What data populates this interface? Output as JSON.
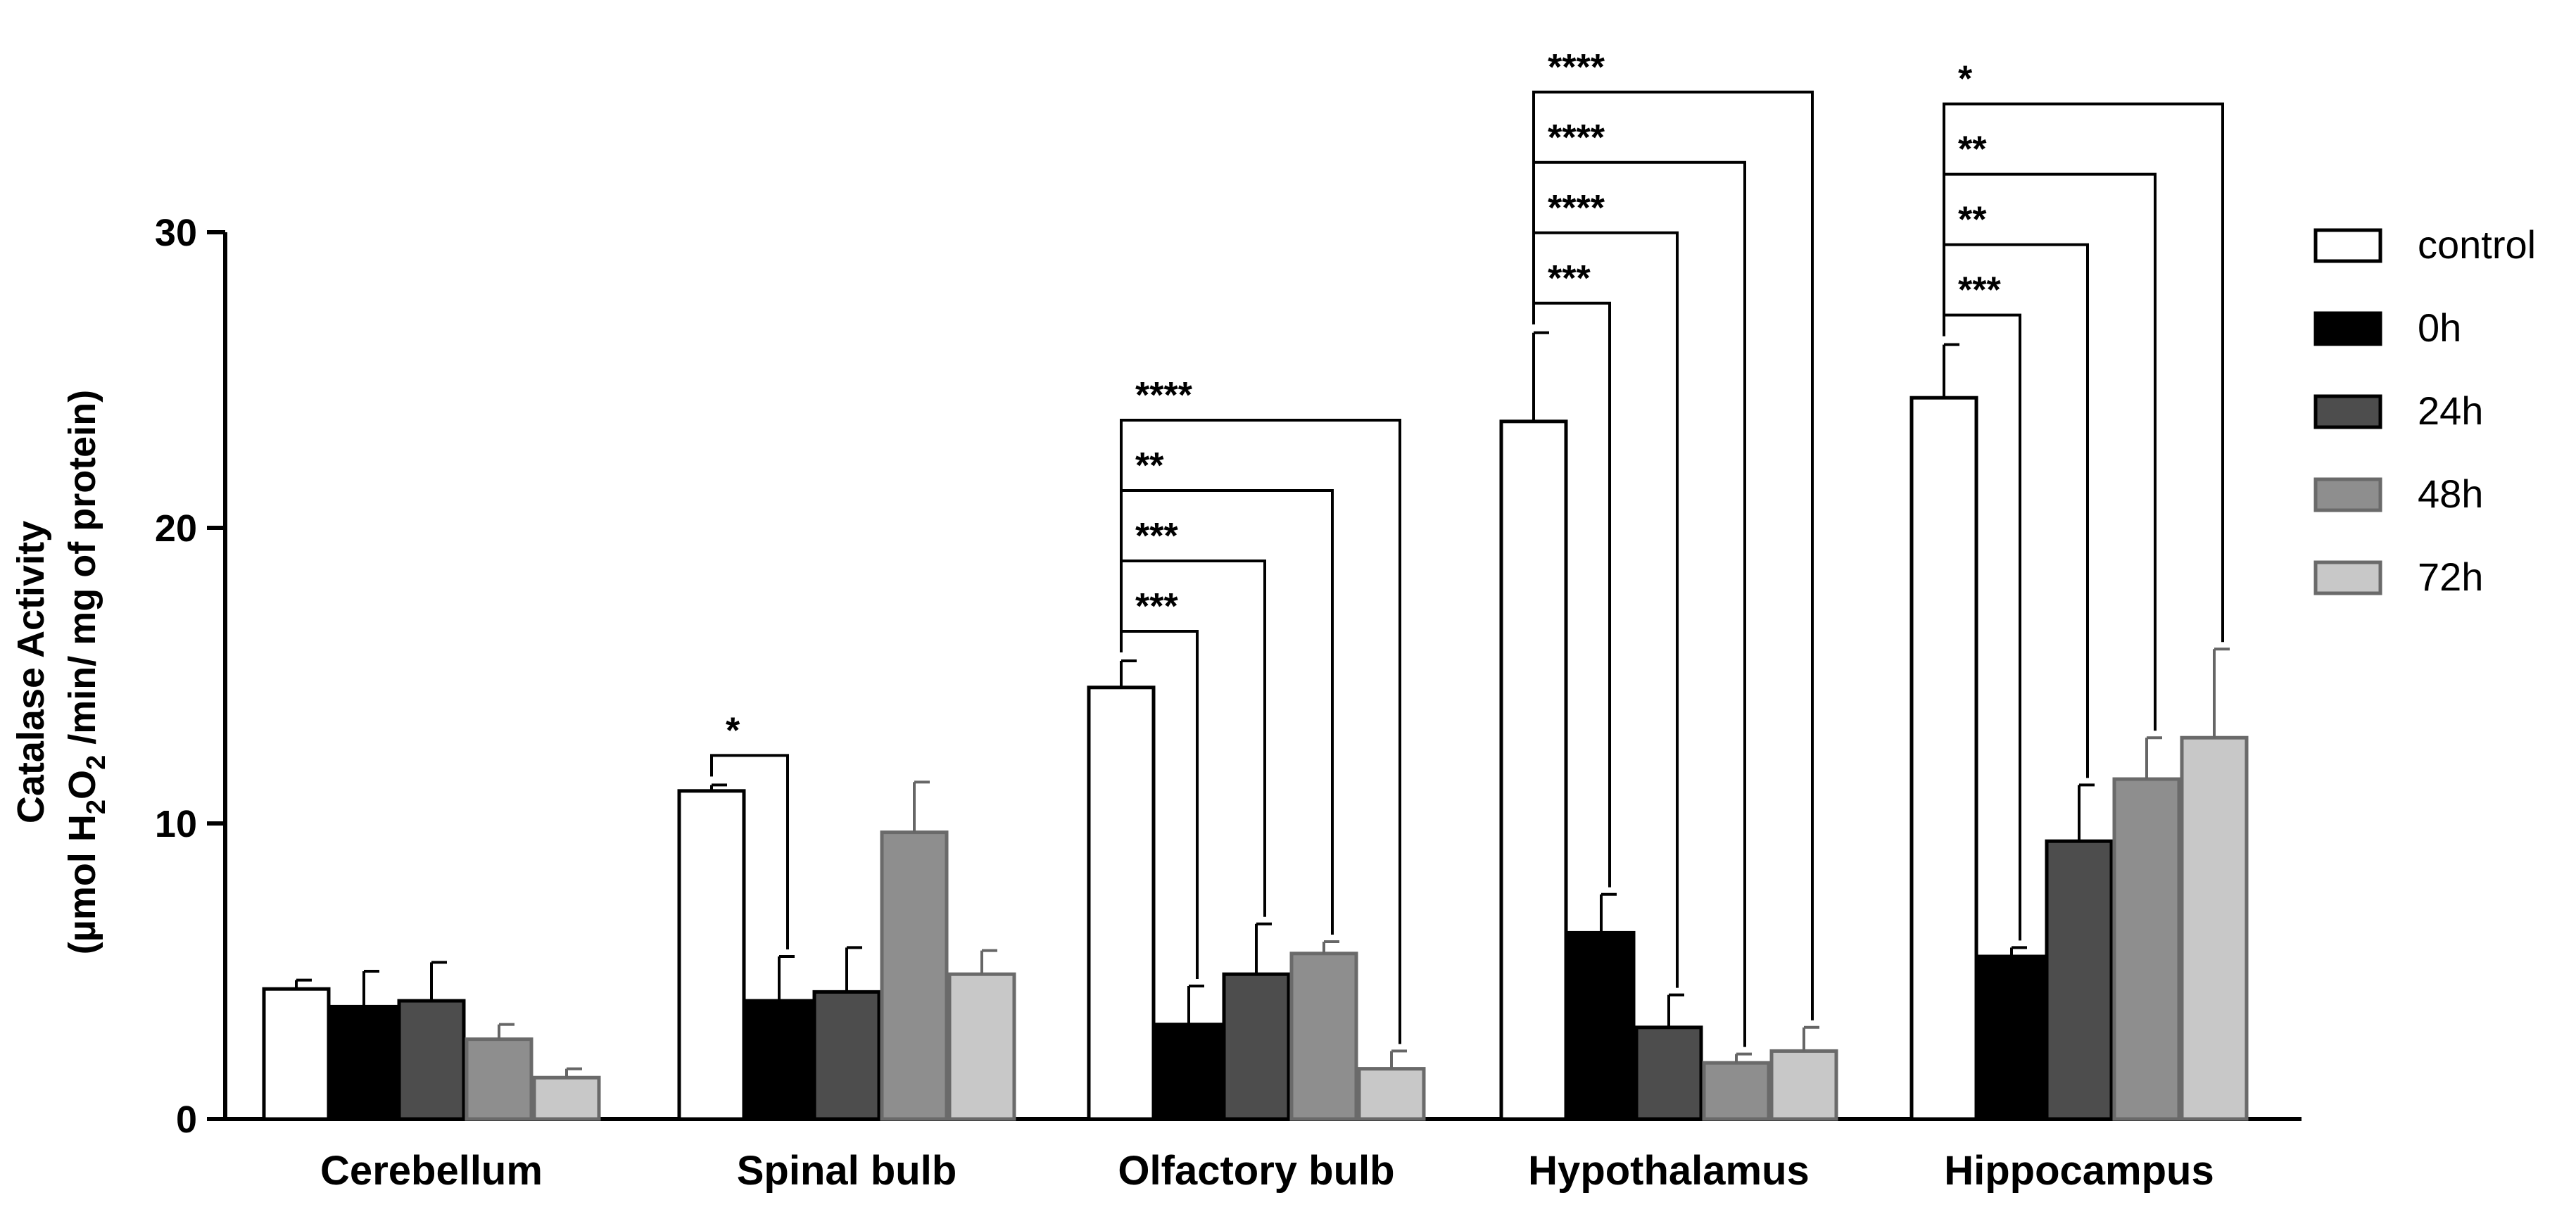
{
  "chart_data": {
    "type": "bar",
    "categories": [
      "Cerebellum",
      "Spinal bulb",
      "Olfactory bulb",
      "Hypothalamus",
      "Hippocampus"
    ],
    "ylabel_line1": "Catalase Activity",
    "ylabel_line2_parts": [
      "(µmol H",
      "2",
      "O",
      "2",
      " /min/ mg of protein)"
    ],
    "ylim": [
      0,
      30
    ],
    "yticks": [
      0,
      10,
      20,
      30
    ],
    "legend_position": "right",
    "grid": false,
    "series": [
      {
        "name": "control",
        "color": "#ffffff",
        "values": [
          4.4,
          11.1,
          14.6,
          23.6,
          24.4
        ],
        "errors": [
          0.3,
          0.2,
          0.9,
          3.0,
          1.8
        ]
      },
      {
        "name": "0h",
        "color": "#000000",
        "values": [
          3.8,
          4.0,
          3.2,
          6.3,
          5.5
        ],
        "errors": [
          1.2,
          1.5,
          1.3,
          1.3,
          0.3
        ]
      },
      {
        "name": "24h",
        "color": "#4d4d4d",
        "values": [
          4.0,
          4.3,
          4.9,
          3.1,
          9.4
        ],
        "errors": [
          1.3,
          1.5,
          1.7,
          1.1,
          1.9
        ]
      },
      {
        "name": "48h",
        "color": "#8e8e8e",
        "values": [
          2.7,
          9.7,
          5.6,
          1.9,
          11.5
        ],
        "errors": [
          0.5,
          1.7,
          0.4,
          0.3,
          1.4
        ]
      },
      {
        "name": "72h",
        "color": "#c8c8c8",
        "values": [
          1.4,
          4.9,
          1.7,
          2.3,
          12.9
        ],
        "errors": [
          0.3,
          0.8,
          0.6,
          0.8,
          3.0
        ]
      }
    ],
    "annotations": [
      {
        "category": 1,
        "to_series": 1,
        "label": "*",
        "level": 0
      },
      {
        "category": 2,
        "to_series": 1,
        "label": "***",
        "level": 0
      },
      {
        "category": 2,
        "to_series": 2,
        "label": "***",
        "level": 1
      },
      {
        "category": 2,
        "to_series": 3,
        "label": "**",
        "level": 2
      },
      {
        "category": 2,
        "to_series": 4,
        "label": "****",
        "level": 3
      },
      {
        "category": 3,
        "to_series": 1,
        "label": "***",
        "level": 0
      },
      {
        "category": 3,
        "to_series": 2,
        "label": "****",
        "level": 1
      },
      {
        "category": 3,
        "to_series": 3,
        "label": "****",
        "level": 2
      },
      {
        "category": 3,
        "to_series": 4,
        "label": "****",
        "level": 3
      },
      {
        "category": 4,
        "to_series": 1,
        "label": "***",
        "level": 0
      },
      {
        "category": 4,
        "to_series": 2,
        "label": "**",
        "level": 1
      },
      {
        "category": 4,
        "to_series": 3,
        "label": "**",
        "level": 2
      },
      {
        "category": 4,
        "to_series": 4,
        "label": "*",
        "level": 3
      }
    ]
  }
}
